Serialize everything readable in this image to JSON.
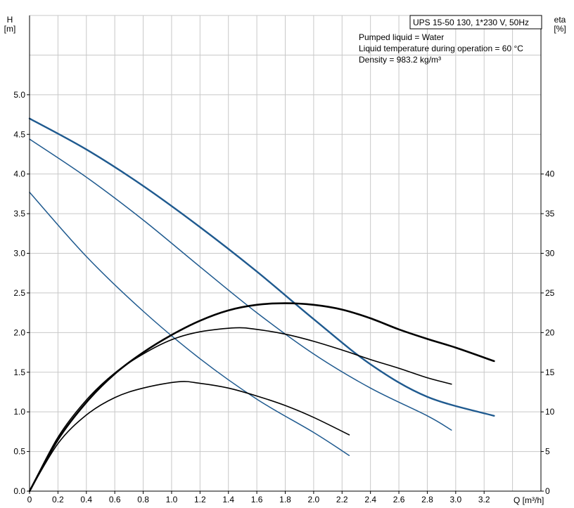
{
  "chart_data": {
    "type": "line",
    "title": "UPS 15-50 130, 1*230 V, 50Hz",
    "info_lines": [
      "Pumped liquid = Water",
      "Liquid temperature during operation = 60 °C",
      "Density = 983.2 kg/m³"
    ],
    "xlabel": "Q [m³/h]",
    "ylabel_left": [
      "H",
      "[m]"
    ],
    "ylabel_right": [
      "eta",
      "[%]"
    ],
    "xlim": [
      0,
      3.6
    ],
    "ylim_left": [
      0,
      6
    ],
    "ylim_right": [
      0,
      60
    ],
    "x_ticks": [
      "0",
      "0.2",
      "0.4",
      "0.6",
      "0.8",
      "1.0",
      "1.2",
      "1.4",
      "1.6",
      "1.8",
      "2.0",
      "2.2",
      "2.4",
      "2.6",
      "2.8",
      "3.0",
      "3.2"
    ],
    "y_left_ticks": [
      "0.0",
      "0.5",
      "1.0",
      "1.5",
      "2.0",
      "2.5",
      "3.0",
      "3.5",
      "4.0",
      "4.5",
      "5.0"
    ],
    "y_right_ticks": [
      "0",
      "5",
      "10",
      "15",
      "20",
      "25",
      "30",
      "35",
      "40"
    ],
    "grid": true,
    "head_curves": [
      {
        "points": [
          [
            0,
            4.7
          ],
          [
            0.4,
            4.31
          ],
          [
            0.8,
            3.85
          ],
          [
            1.2,
            3.33
          ],
          [
            1.6,
            2.77
          ],
          [
            2.0,
            2.17
          ],
          [
            2.4,
            1.6
          ],
          [
            2.8,
            1.19
          ],
          [
            3.27,
            0.95
          ]
        ]
      },
      {
        "points": [
          [
            0,
            4.44
          ],
          [
            0.4,
            3.96
          ],
          [
            0.8,
            3.42
          ],
          [
            1.2,
            2.83
          ],
          [
            1.6,
            2.25
          ],
          [
            2.0,
            1.73
          ],
          [
            2.4,
            1.3
          ],
          [
            2.8,
            0.95
          ],
          [
            2.97,
            0.77
          ]
        ]
      },
      {
        "points": [
          [
            0,
            3.77
          ],
          [
            0.4,
            2.96
          ],
          [
            0.8,
            2.27
          ],
          [
            1.2,
            1.67
          ],
          [
            1.6,
            1.16
          ],
          [
            2.0,
            0.74
          ],
          [
            2.25,
            0.45
          ]
        ]
      }
    ],
    "efficiency_curves": [
      {
        "points": [
          [
            0,
            0
          ],
          [
            0.2,
            6.5
          ],
          [
            0.4,
            11.2
          ],
          [
            0.6,
            14.8
          ],
          [
            0.8,
            17.5
          ],
          [
            1.0,
            19.7
          ],
          [
            1.2,
            21.5
          ],
          [
            1.4,
            22.8
          ],
          [
            1.6,
            23.5
          ],
          [
            1.8,
            23.7
          ],
          [
            2.0,
            23.5
          ],
          [
            2.2,
            22.9
          ],
          [
            2.4,
            21.8
          ],
          [
            2.6,
            20.4
          ],
          [
            2.8,
            19.2
          ],
          [
            3.0,
            18.1
          ],
          [
            3.27,
            16.4
          ]
        ]
      },
      {
        "points": [
          [
            0,
            0
          ],
          [
            0.2,
            6.8
          ],
          [
            0.4,
            11.5
          ],
          [
            0.6,
            14.9
          ],
          [
            0.8,
            17.3
          ],
          [
            1.0,
            19.1
          ],
          [
            1.2,
            20.1
          ],
          [
            1.45,
            20.6
          ],
          [
            1.6,
            20.4
          ],
          [
            1.8,
            19.8
          ],
          [
            2.0,
            18.9
          ],
          [
            2.2,
            17.8
          ],
          [
            2.4,
            16.6
          ],
          [
            2.6,
            15.5
          ],
          [
            2.8,
            14.3
          ],
          [
            2.97,
            13.5
          ]
        ]
      },
      {
        "points": [
          [
            0,
            0
          ],
          [
            0.2,
            6.0
          ],
          [
            0.4,
            9.6
          ],
          [
            0.6,
            11.8
          ],
          [
            0.8,
            13.0
          ],
          [
            1.05,
            13.8
          ],
          [
            1.2,
            13.6
          ],
          [
            1.4,
            13.0
          ],
          [
            1.6,
            12.0
          ],
          [
            1.8,
            10.8
          ],
          [
            2.0,
            9.3
          ],
          [
            2.25,
            7.1
          ]
        ]
      }
    ],
    "colors": {
      "head": "#1f5a8f",
      "efficiency": "#000000",
      "grid": "#c8c8c8"
    }
  }
}
